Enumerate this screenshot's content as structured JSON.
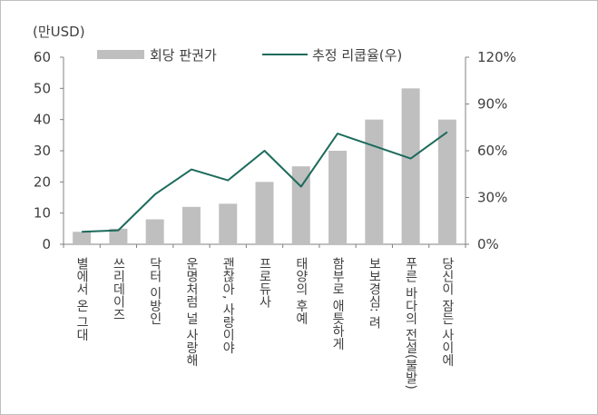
{
  "chart_data": {
    "type": "bar",
    "unit_label": "(만USD)",
    "categories": [
      "별에서 온 그대",
      "쓰리데이즈",
      "닥터 이방인",
      "운명처럼 널 사랑해",
      "괜찮아, 사랑이야",
      "프로듀사",
      "태양의 후예",
      "함부로 애틋하게",
      "보보경심: 려",
      "푸른 바다의 전설(불발)",
      "당신이 잠든 사이에"
    ],
    "series": [
      {
        "name": "회당 판권가",
        "kind": "bar",
        "axis": "left",
        "color": "#bfbfbf",
        "values": [
          4,
          5,
          8,
          12,
          13,
          20,
          25,
          30,
          40,
          50,
          40
        ]
      },
      {
        "name": "추정 리쿱율(우)",
        "kind": "line",
        "axis": "right",
        "color": "#1d6b5c",
        "values": [
          8,
          9,
          32,
          48,
          41,
          60,
          37,
          71,
          63,
          55,
          72
        ]
      }
    ],
    "y_left": {
      "ylim": [
        0,
        60
      ],
      "ticks": [
        "0",
        "10",
        "20",
        "30",
        "40",
        "50",
        "60"
      ]
    },
    "y_right": {
      "ylim": [
        0,
        120
      ],
      "ticks": [
        "0%",
        "30%",
        "60%",
        "90%",
        "120%"
      ]
    },
    "legend_position": "top",
    "grid": false
  },
  "colors": {
    "frame": "#bfbfbf",
    "axis": "#808080",
    "text": "#404040"
  }
}
